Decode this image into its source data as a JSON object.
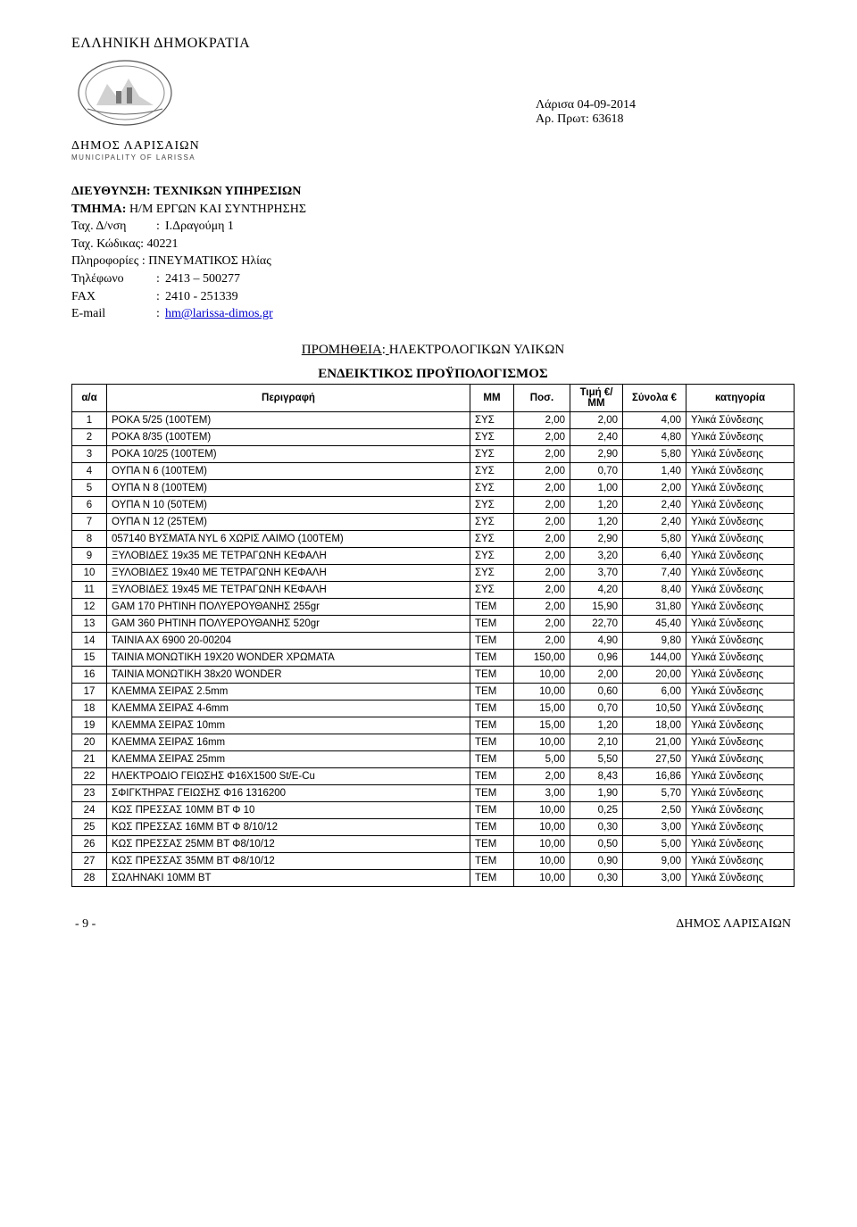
{
  "header": {
    "republic": "ΕΛΛΗΝΙΚΗ ΔΗΜΟΚΡΑΤΙΑ",
    "municipality_name": "ΔΗΜΟΣ ΛΑΡΙΣΑΙΩΝ",
    "municipality_sub": "MUNICIPALITY OF LARISSA",
    "date_line": "Λάρισα 04-09-2014",
    "ref_label": "Αρ. Πρωτ:",
    "ref_value": "63618",
    "direction_label": "ΔΙΕΥΘΥΝΣΗ",
    "direction_value": "ΤΕΧΝΙΚΩΝ ΥΠΗΡΕΣΙΩΝ",
    "dept_label": "ΤΜΗΜΑ:",
    "dept_value": "Η/Μ ΕΡΓΩΝ ΚΑΙ ΣΥΝΤΗΡΗΣΗΣ",
    "addr_label": "Ταχ. Δ/νση",
    "addr_value": "Ι.Δραγούμη 1",
    "postcode_label": "Ταχ. Κώδικας:",
    "postcode_value": "40221",
    "info_label": "Πληροφορίες :",
    "info_value": "ΠΝΕΥΜΑΤΙΚΟΣ Ηλίας",
    "tel_label": "Τηλέφωνο",
    "tel_value": "2413 – 500277",
    "fax_label": "FAX",
    "fax_value": "2410 - 251339",
    "email_label": "E-mail",
    "email_value": "hm@larissa-dimos.gr"
  },
  "procurement": {
    "label": "ΠΡΟΜΗΘΕΙΑ",
    "value": "ΗΛΕΚΤΡΟΛΟΓΙΚΩΝ  ΥΛΙΚΩΝ",
    "budget_title": "ΕΝΔΕΙΚΤΙΚΟΣ  ΠΡΟΫΠΟΛΟΓΙΣΜΟΣ"
  },
  "table": {
    "columns": {
      "aa": "α/α",
      "desc": "Περιγραφή",
      "mm": "ΜΜ",
      "pos": "Ποσ.",
      "price": "Τιμή €/ΜΜ",
      "sum": "Σύνολα €",
      "cat": "κατηγορία"
    },
    "rows": [
      {
        "aa": "1",
        "desc": "ΡΟΚΑ 5/25 (100ΤΕΜ)",
        "mm": "ΣΥΣ",
        "pos": "2,00",
        "price": "2,00",
        "sum": "4,00",
        "cat": "Υλικά Σύνδεσης"
      },
      {
        "aa": "2",
        "desc": "ΡΟΚΑ 8/35 (100ΤΕΜ)",
        "mm": "ΣΥΣ",
        "pos": "2,00",
        "price": "2,40",
        "sum": "4,80",
        "cat": "Υλικά Σύνδεσης"
      },
      {
        "aa": "3",
        "desc": "ΡΟΚΑ 10/25 (100ΤΕΜ)",
        "mm": "ΣΥΣ",
        "pos": "2,00",
        "price": "2,90",
        "sum": "5,80",
        "cat": "Υλικά Σύνδεσης"
      },
      {
        "aa": "4",
        "desc": "ΟΥΠΑ Ν  6 (100ΤΕΜ)",
        "mm": "ΣΥΣ",
        "pos": "2,00",
        "price": "0,70",
        "sum": "1,40",
        "cat": "Υλικά Σύνδεσης"
      },
      {
        "aa": "5",
        "desc": "ΟΥΠΑ Ν  8 (100ΤΕΜ)",
        "mm": "ΣΥΣ",
        "pos": "2,00",
        "price": "1,00",
        "sum": "2,00",
        "cat": "Υλικά Σύνδεσης"
      },
      {
        "aa": "6",
        "desc": "ΟΥΠΑ Ν 10 (50ΤΕΜ)",
        "mm": "ΣΥΣ",
        "pos": "2,00",
        "price": "1,20",
        "sum": "2,40",
        "cat": "Υλικά Σύνδεσης"
      },
      {
        "aa": "7",
        "desc": "ΟΥΠΑ Ν 12 (25ΤΕΜ)",
        "mm": "ΣΥΣ",
        "pos": "2,00",
        "price": "1,20",
        "sum": "2,40",
        "cat": "Υλικά Σύνδεσης"
      },
      {
        "aa": "8",
        "desc": "057140 ΒΥΣΜΑΤΑ NYL   6 ΧΩΡΙΣ ΛΑΙΜΟ (100ΤΕΜ)",
        "mm": "ΣΥΣ",
        "pos": "2,00",
        "price": "2,90",
        "sum": "5,80",
        "cat": "Υλικά Σύνδεσης"
      },
      {
        "aa": "9",
        "desc": "ΞΥΛΟΒΙΔΕΣ 19x35 ΜΕ ΤΕΤΡΑΓΩΝΗ ΚΕΦΑΛΗ",
        "mm": "ΣΥΣ",
        "pos": "2,00",
        "price": "3,20",
        "sum": "6,40",
        "cat": "Υλικά Σύνδεσης"
      },
      {
        "aa": "10",
        "desc": "ΞΥΛΟΒΙΔΕΣ 19x40 ΜΕ ΤΕΤΡΑΓΩΝΗ ΚΕΦΑΛΗ",
        "mm": "ΣΥΣ",
        "pos": "2,00",
        "price": "3,70",
        "sum": "7,40",
        "cat": "Υλικά Σύνδεσης"
      },
      {
        "aa": "11",
        "desc": "ΞΥΛΟΒΙΔΕΣ 19x45 ΜΕ ΤΕΤΡΑΓΩΝΗ ΚΕΦΑΛΗ",
        "mm": "ΣΥΣ",
        "pos": "2,00",
        "price": "4,20",
        "sum": "8,40",
        "cat": "Υλικά Σύνδεσης"
      },
      {
        "aa": "12",
        "desc": "GAM 170 ΡΗΤΙΝΗ ΠΟΛΥΕΡΟΥΘΑΝΗΣ 255gr",
        "mm": "ΤΕΜ",
        "pos": "2,00",
        "price": "15,90",
        "sum": "31,80",
        "cat": "Υλικά Σύνδεσης"
      },
      {
        "aa": "13",
        "desc": "GAM 360 ΡΗΤΙΝΗ ΠΟΛΥΕΡΟΥΘΑΝΗΣ 520gr",
        "mm": "ΤΕΜ",
        "pos": "2,00",
        "price": "22,70",
        "sum": "45,40",
        "cat": "Υλικά Σύνδεσης"
      },
      {
        "aa": "14",
        "desc": "ΤΑΙΝΙΑ ΑΧ 6900   20-00204",
        "mm": "ΤΕΜ",
        "pos": "2,00",
        "price": "4,90",
        "sum": "9,80",
        "cat": "Υλικά Σύνδεσης"
      },
      {
        "aa": "15",
        "desc": "ΤΑΙΝΙΑ ΜΟΝΩΤΙΚΗ 19Χ20 WONDER ΧΡΩΜΑΤΑ",
        "mm": "ΤΕΜ",
        "pos": "150,00",
        "price": "0,96",
        "sum": "144,00",
        "cat": "Υλικά Σύνδεσης"
      },
      {
        "aa": "16",
        "desc": "ΤΑΙΝΙΑ ΜΟΝΩΤΙΚΗ 38x20 WONDER",
        "mm": "ΤΕΜ",
        "pos": "10,00",
        "price": "2,00",
        "sum": "20,00",
        "cat": "Υλικά Σύνδεσης"
      },
      {
        "aa": "17",
        "desc": "ΚΛΕΜΜΑ ΣΕΙΡΑΣ  2.5mm",
        "mm": "ΤΕΜ",
        "pos": "10,00",
        "price": "0,60",
        "sum": "6,00",
        "cat": "Υλικά Σύνδεσης"
      },
      {
        "aa": "18",
        "desc": "ΚΛΕΜΜΑ ΣΕΙΡΑΣ  4-6mm",
        "mm": "ΤΕΜ",
        "pos": "15,00",
        "price": "0,70",
        "sum": "10,50",
        "cat": "Υλικά Σύνδεσης"
      },
      {
        "aa": "19",
        "desc": "ΚΛΕΜΜΑ ΣΕΙΡΑΣ  10mm",
        "mm": "ΤΕΜ",
        "pos": "15,00",
        "price": "1,20",
        "sum": "18,00",
        "cat": "Υλικά Σύνδεσης"
      },
      {
        "aa": "20",
        "desc": "ΚΛΕΜΜΑ ΣΕΙΡΑΣ  16mm",
        "mm": "ΤΕΜ",
        "pos": "10,00",
        "price": "2,10",
        "sum": "21,00",
        "cat": "Υλικά Σύνδεσης"
      },
      {
        "aa": "21",
        "desc": "ΚΛΕΜΜΑ ΣΕΙΡΑΣ  25mm",
        "mm": "ΤΕΜ",
        "pos": "5,00",
        "price": "5,50",
        "sum": "27,50",
        "cat": "Υλικά Σύνδεσης"
      },
      {
        "aa": "22",
        "desc": "ΗΛΕΚΤΡΟΔΙΟ ΓΕΙΩΣΗΣ Φ16Χ1500 St/E-Cu",
        "mm": "ΤΕΜ",
        "pos": "2,00",
        "price": "8,43",
        "sum": "16,86",
        "cat": "Υλικά Σύνδεσης"
      },
      {
        "aa": "23",
        "desc": "ΣΦΙΓΚΤΗΡΑΣ ΓΕΙΩΣΗΣ Φ16 1316200",
        "mm": "ΤΕΜ",
        "pos": "3,00",
        "price": "1,90",
        "sum": "5,70",
        "cat": "Υλικά Σύνδεσης"
      },
      {
        "aa": "24",
        "desc": "ΚΩΣ ΠΡΕΣΣΑΣ 10ΜΜ ΒΤ Φ 10",
        "mm": "ΤΕΜ",
        "pos": "10,00",
        "price": "0,25",
        "sum": "2,50",
        "cat": "Υλικά Σύνδεσης"
      },
      {
        "aa": "25",
        "desc": "ΚΩΣ ΠΡΕΣΣΑΣ 16ΜΜ ΒΤ Φ 8/10/12",
        "mm": "ΤΕΜ",
        "pos": "10,00",
        "price": "0,30",
        "sum": "3,00",
        "cat": "Υλικά Σύνδεσης"
      },
      {
        "aa": "26",
        "desc": "ΚΩΣ ΠΡΕΣΣΑΣ 25ΜΜ ΒΤ Φ8/10/12",
        "mm": "ΤΕΜ",
        "pos": "10,00",
        "price": "0,50",
        "sum": "5,00",
        "cat": "Υλικά Σύνδεσης"
      },
      {
        "aa": "27",
        "desc": "ΚΩΣ ΠΡΕΣΣΑΣ 35ΜΜ ΒΤ Φ8/10/12",
        "mm": "ΤΕΜ",
        "pos": "10,00",
        "price": "0,90",
        "sum": "9,00",
        "cat": "Υλικά Σύνδεσης"
      },
      {
        "aa": "28",
        "desc": "ΣΩΛΗΝΑΚΙ 10ΜΜ ΒΤ",
        "mm": "ΤΕΜ",
        "pos": "10,00",
        "price": "0,30",
        "sum": "3,00",
        "cat": "Υλικά Σύνδεσης"
      }
    ]
  },
  "footer": {
    "page": "- 9 -",
    "org": "ΔΗΜΟΣ ΛΑΡΙΣΑΙΩΝ"
  },
  "style": {
    "link_color": "#0000cc",
    "border_color": "#000000",
    "body_font_size_pt": 11,
    "table_font_size_pt": 9
  }
}
